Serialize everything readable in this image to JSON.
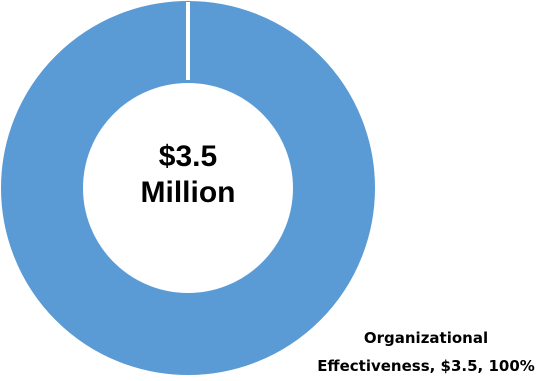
{
  "chart_data": {
    "type": "pie",
    "categories": [
      "Organizational Effectiveness"
    ],
    "values": [
      3.5
    ],
    "percentages": [
      100
    ],
    "center_label": [
      "$3.5",
      "Million"
    ],
    "data_labels": [
      [
        "Organizational",
        "Effectiveness, $3.5, 100%"
      ]
    ],
    "colors": [
      "#5b9bd5"
    ],
    "legend": "none"
  }
}
